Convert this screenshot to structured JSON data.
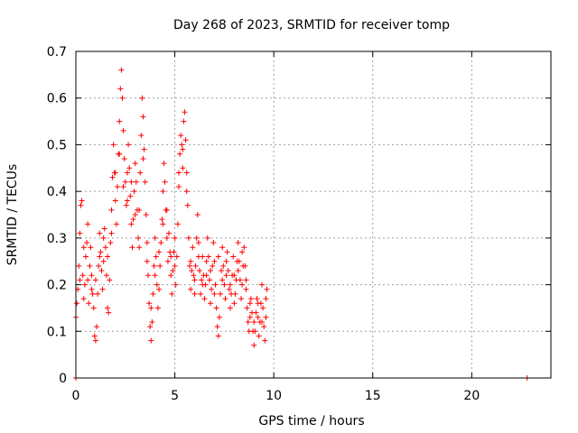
{
  "chart_data": {
    "type": "scatter",
    "title": "Day 268 of 2023, SRMTID for receiver tomp",
    "xlabel": "GPS time / hours",
    "ylabel": "SRMTID / TECUs",
    "xlim": [
      0,
      24
    ],
    "ylim": [
      0,
      0.7
    ],
    "xticks": [
      0,
      5,
      10,
      15,
      20
    ],
    "yticks": [
      0,
      0.1,
      0.2,
      0.3,
      0.4,
      0.5,
      0.6,
      0.7
    ],
    "grid": true,
    "marker": "+",
    "series": [
      {
        "name": "SRMTID",
        "color": "#ff0000",
        "points": [
          [
            0.0,
            0.0
          ],
          [
            0.0,
            0.13
          ],
          [
            0.05,
            0.16
          ],
          [
            0.1,
            0.19
          ],
          [
            0.15,
            0.24
          ],
          [
            0.2,
            0.31
          ],
          [
            0.25,
            0.37
          ],
          [
            0.3,
            0.38
          ],
          [
            0.35,
            0.22
          ],
          [
            0.4,
            0.17
          ],
          [
            0.45,
            0.2
          ],
          [
            0.5,
            0.26
          ],
          [
            0.55,
            0.29
          ],
          [
            0.6,
            0.21
          ],
          [
            0.65,
            0.16
          ],
          [
            0.7,
            0.24
          ],
          [
            0.75,
            0.28
          ],
          [
            0.8,
            0.22
          ],
          [
            0.85,
            0.18
          ],
          [
            0.9,
            0.15
          ],
          [
            0.95,
            0.09
          ],
          [
            1.0,
            0.08
          ],
          [
            1.05,
            0.11
          ],
          [
            1.1,
            0.18
          ],
          [
            1.15,
            0.24
          ],
          [
            1.2,
            0.31
          ],
          [
            1.25,
            0.27
          ],
          [
            1.3,
            0.23
          ],
          [
            1.35,
            0.19
          ],
          [
            1.4,
            0.25
          ],
          [
            1.45,
            0.32
          ],
          [
            1.5,
            0.28
          ],
          [
            1.55,
            0.22
          ],
          [
            1.6,
            0.15
          ],
          [
            1.65,
            0.14
          ],
          [
            1.7,
            0.21
          ],
          [
            1.75,
            0.29
          ],
          [
            1.8,
            0.36
          ],
          [
            1.85,
            0.43
          ],
          [
            1.9,
            0.5
          ],
          [
            1.95,
            0.44
          ],
          [
            2.0,
            0.38
          ],
          [
            2.05,
            0.33
          ],
          [
            2.1,
            0.41
          ],
          [
            2.15,
            0.48
          ],
          [
            2.2,
            0.55
          ],
          [
            2.25,
            0.62
          ],
          [
            2.3,
            0.66
          ],
          [
            2.35,
            0.6
          ],
          [
            2.4,
            0.53
          ],
          [
            2.45,
            0.47
          ],
          [
            2.5,
            0.42
          ],
          [
            2.55,
            0.37
          ],
          [
            2.6,
            0.44
          ],
          [
            2.65,
            0.5
          ],
          [
            2.7,
            0.45
          ],
          [
            2.75,
            0.39
          ],
          [
            2.8,
            0.33
          ],
          [
            2.85,
            0.28
          ],
          [
            2.9,
            0.34
          ],
          [
            2.95,
            0.4
          ],
          [
            3.0,
            0.46
          ],
          [
            3.05,
            0.42
          ],
          [
            3.1,
            0.36
          ],
          [
            3.15,
            0.3
          ],
          [
            3.2,
            0.36
          ],
          [
            3.25,
            0.44
          ],
          [
            3.3,
            0.52
          ],
          [
            3.35,
            0.6
          ],
          [
            3.4,
            0.56
          ],
          [
            3.45,
            0.49
          ],
          [
            3.5,
            0.42
          ],
          [
            3.55,
            0.35
          ],
          [
            3.6,
            0.29
          ],
          [
            3.65,
            0.22
          ],
          [
            3.7,
            0.16
          ],
          [
            3.75,
            0.11
          ],
          [
            3.8,
            0.08
          ],
          [
            3.85,
            0.12
          ],
          [
            3.9,
            0.18
          ],
          [
            3.95,
            0.24
          ],
          [
            4.0,
            0.3
          ],
          [
            4.05,
            0.26
          ],
          [
            4.1,
            0.2
          ],
          [
            4.15,
            0.15
          ],
          [
            4.2,
            0.19
          ],
          [
            4.25,
            0.24
          ],
          [
            4.3,
            0.29
          ],
          [
            4.35,
            0.34
          ],
          [
            4.4,
            0.4
          ],
          [
            4.45,
            0.46
          ],
          [
            4.5,
            0.42
          ],
          [
            4.55,
            0.36
          ],
          [
            4.6,
            0.3
          ],
          [
            4.65,
            0.25
          ],
          [
            4.7,
            0.31
          ],
          [
            4.75,
            0.27
          ],
          [
            4.8,
            0.22
          ],
          [
            4.85,
            0.18
          ],
          [
            4.9,
            0.23
          ],
          [
            4.95,
            0.27
          ],
          [
            5.0,
            0.24
          ],
          [
            5.05,
            0.2
          ],
          [
            5.1,
            0.26
          ],
          [
            5.15,
            0.33
          ],
          [
            5.2,
            0.41
          ],
          [
            5.25,
            0.48
          ],
          [
            5.3,
            0.52
          ],
          [
            5.35,
            0.5
          ],
          [
            5.4,
            0.45
          ],
          [
            5.45,
            0.55
          ],
          [
            5.5,
            0.57
          ],
          [
            5.55,
            0.51
          ],
          [
            5.6,
            0.44
          ],
          [
            5.65,
            0.37
          ],
          [
            5.7,
            0.3
          ],
          [
            5.75,
            0.24
          ],
          [
            5.8,
            0.19
          ],
          [
            5.85,
            0.23
          ],
          [
            5.9,
            0.28
          ],
          [
            5.95,
            0.22
          ],
          [
            6.0,
            0.18
          ],
          [
            6.05,
            0.24
          ],
          [
            6.1,
            0.3
          ],
          [
            6.15,
            0.35
          ],
          [
            6.2,
            0.29
          ],
          [
            6.25,
            0.23
          ],
          [
            6.3,
            0.18
          ],
          [
            6.35,
            0.21
          ],
          [
            6.4,
            0.26
          ],
          [
            6.45,
            0.22
          ],
          [
            6.5,
            0.17
          ],
          [
            6.55,
            0.2
          ],
          [
            6.6,
            0.25
          ],
          [
            6.65,
            0.3
          ],
          [
            6.7,
            0.26
          ],
          [
            6.75,
            0.21
          ],
          [
            6.8,
            0.16
          ],
          [
            6.85,
            0.19
          ],
          [
            6.9,
            0.24
          ],
          [
            6.95,
            0.29
          ],
          [
            7.0,
            0.25
          ],
          [
            7.05,
            0.2
          ],
          [
            7.1,
            0.15
          ],
          [
            7.15,
            0.11
          ],
          [
            7.2,
            0.09
          ],
          [
            7.25,
            0.13
          ],
          [
            7.3,
            0.18
          ],
          [
            7.35,
            0.23
          ],
          [
            7.4,
            0.28
          ],
          [
            7.45,
            0.24
          ],
          [
            7.5,
            0.2
          ],
          [
            7.55,
            0.17
          ],
          [
            7.6,
            0.22
          ],
          [
            7.65,
            0.27
          ],
          [
            7.7,
            0.23
          ],
          [
            7.75,
            0.19
          ],
          [
            7.8,
            0.15
          ],
          [
            7.85,
            0.18
          ],
          [
            7.9,
            0.22
          ],
          [
            7.95,
            0.26
          ],
          [
            8.0,
            0.22
          ],
          [
            8.05,
            0.18
          ],
          [
            8.1,
            0.21
          ],
          [
            8.15,
            0.25
          ],
          [
            8.2,
            0.29
          ],
          [
            8.25,
            0.25
          ],
          [
            8.3,
            0.21
          ],
          [
            8.35,
            0.17
          ],
          [
            8.4,
            0.2
          ],
          [
            8.45,
            0.24
          ],
          [
            8.5,
            0.28
          ],
          [
            8.55,
            0.24
          ],
          [
            8.6,
            0.19
          ],
          [
            8.65,
            0.15
          ],
          [
            8.7,
            0.12
          ],
          [
            8.75,
            0.1
          ],
          [
            8.8,
            0.13
          ],
          [
            8.85,
            0.17
          ],
          [
            8.9,
            0.14
          ],
          [
            8.95,
            0.1
          ],
          [
            9.0,
            0.07
          ],
          [
            9.05,
            0.1
          ],
          [
            9.1,
            0.14
          ],
          [
            9.15,
            0.17
          ],
          [
            9.2,
            0.13
          ],
          [
            9.25,
            0.09
          ],
          [
            9.3,
            0.12
          ],
          [
            9.35,
            0.16
          ],
          [
            9.4,
            0.2
          ],
          [
            9.45,
            0.15
          ],
          [
            9.5,
            0.11
          ],
          [
            9.55,
            0.08
          ],
          [
            9.6,
            0.13
          ],
          [
            9.65,
            0.19
          ],
          [
            0.2,
            0.21
          ],
          [
            0.4,
            0.28
          ],
          [
            0.6,
            0.33
          ],
          [
            0.8,
            0.19
          ],
          [
            1.0,
            0.21
          ],
          [
            1.2,
            0.26
          ],
          [
            1.4,
            0.3
          ],
          [
            1.6,
            0.26
          ],
          [
            1.8,
            0.31
          ],
          [
            2.0,
            0.44
          ],
          [
            2.2,
            0.48
          ],
          [
            2.4,
            0.41
          ],
          [
            2.6,
            0.38
          ],
          [
            2.8,
            0.42
          ],
          [
            3.0,
            0.35
          ],
          [
            3.2,
            0.28
          ],
          [
            3.4,
            0.47
          ],
          [
            3.6,
            0.25
          ],
          [
            3.8,
            0.15
          ],
          [
            4.0,
            0.22
          ],
          [
            4.2,
            0.27
          ],
          [
            4.4,
            0.33
          ],
          [
            4.6,
            0.36
          ],
          [
            4.8,
            0.26
          ],
          [
            5.0,
            0.3
          ],
          [
            5.2,
            0.44
          ],
          [
            5.4,
            0.49
          ],
          [
            5.6,
            0.4
          ],
          [
            5.8,
            0.25
          ],
          [
            6.0,
            0.21
          ],
          [
            6.2,
            0.26
          ],
          [
            6.4,
            0.2
          ],
          [
            6.6,
            0.22
          ],
          [
            6.8,
            0.23
          ],
          [
            7.0,
            0.18
          ],
          [
            7.2,
            0.26
          ],
          [
            7.4,
            0.21
          ],
          [
            7.6,
            0.25
          ],
          [
            7.8,
            0.2
          ],
          [
            8.0,
            0.16
          ],
          [
            8.2,
            0.23
          ],
          [
            8.4,
            0.27
          ],
          [
            8.6,
            0.21
          ],
          [
            8.8,
            0.16
          ],
          [
            9.0,
            0.12
          ],
          [
            9.2,
            0.16
          ],
          [
            9.4,
            0.12
          ],
          [
            9.6,
            0.17
          ],
          [
            22.8,
            0.0
          ]
        ]
      }
    ]
  }
}
